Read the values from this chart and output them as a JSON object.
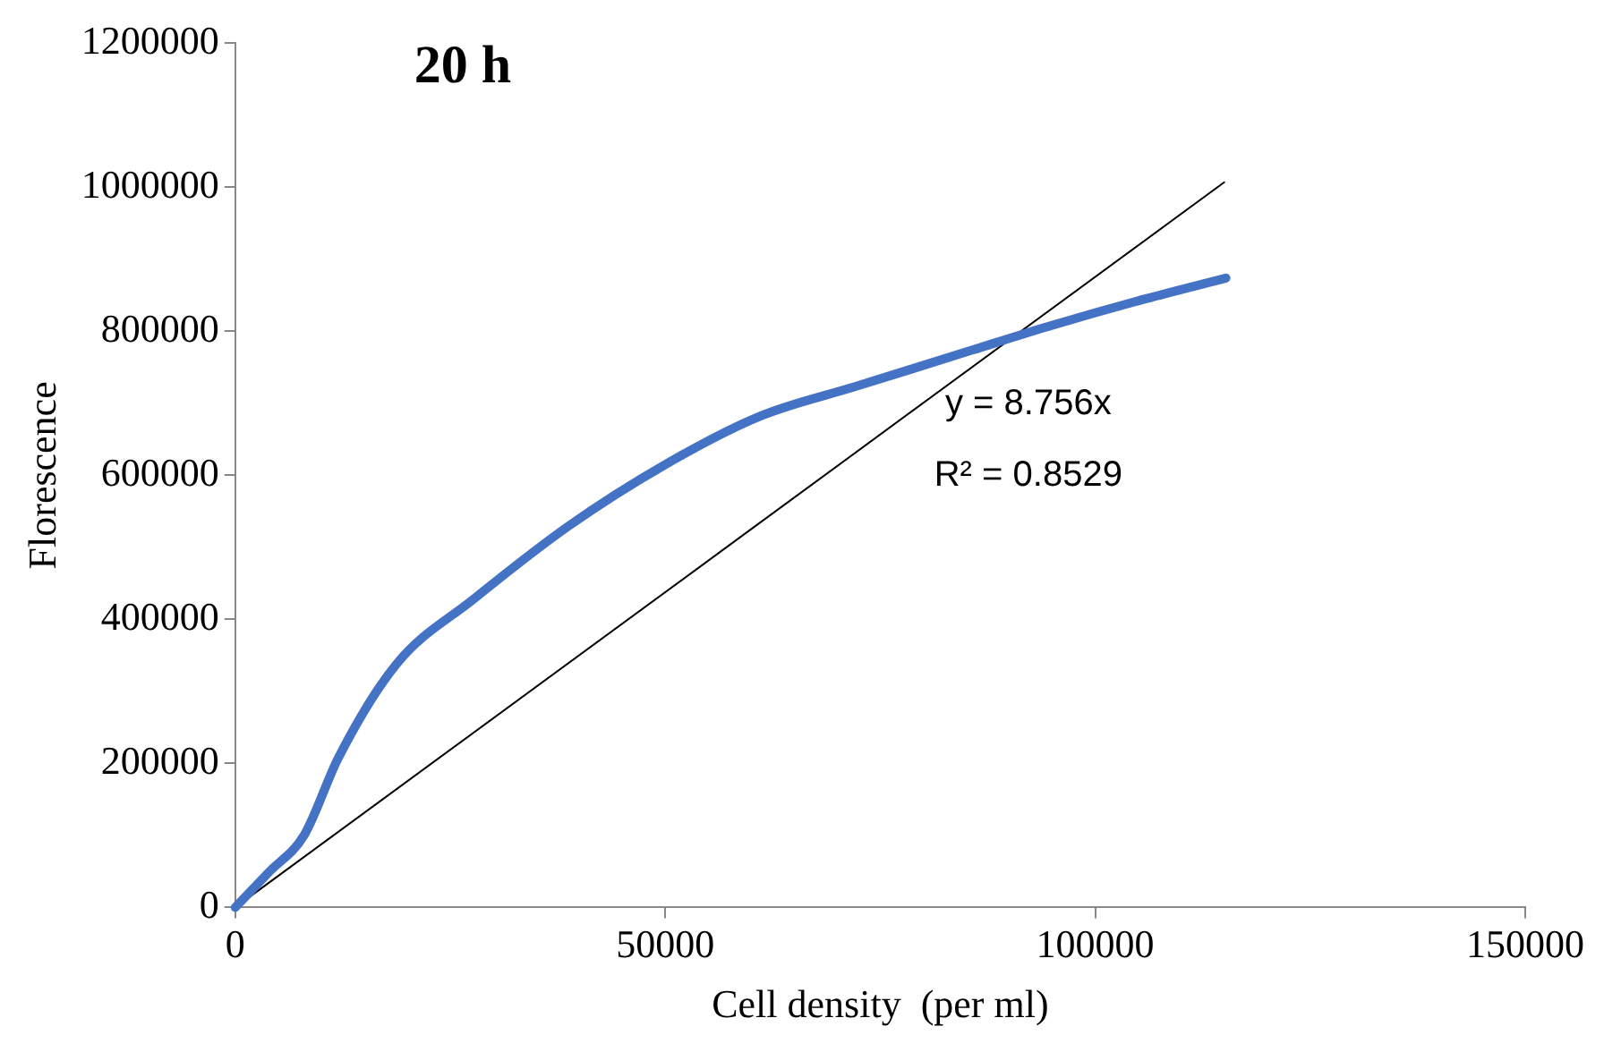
{
  "chart_data": {
    "type": "line",
    "title": "20 h",
    "xlabel": "Cell density  (per ml)",
    "ylabel": "Florescence",
    "xlim": [
      0,
      150000
    ],
    "xticks": [
      0,
      50000,
      100000,
      150000
    ],
    "ylim": [
      0,
      1200000
    ],
    "yticks": [
      0,
      200000,
      400000,
      600000,
      800000,
      1000000,
      1200000
    ],
    "grid": false,
    "legend": false,
    "marker": "none",
    "series": [
      {
        "color": "#4472c4",
        "x": [
          0,
          4000,
          8000,
          12000,
          18750,
          27700,
          38800,
          50000,
          61000,
          72300,
          85700,
          94600,
          105800,
          115200
        ],
        "values": [
          0,
          50000,
          100000,
          208000,
          338000,
          428000,
          530000,
          615000,
          682000,
          724000,
          774000,
          807000,
          845000,
          874000
        ]
      },
      {
        "type": "line",
        "color": "#000000",
        "x": [
          0,
          115000
        ],
        "values": [
          0,
          1007000
        ]
      }
    ],
    "annotations": [
      "y = 8.756x",
      "R² = 0.8529"
    ]
  }
}
